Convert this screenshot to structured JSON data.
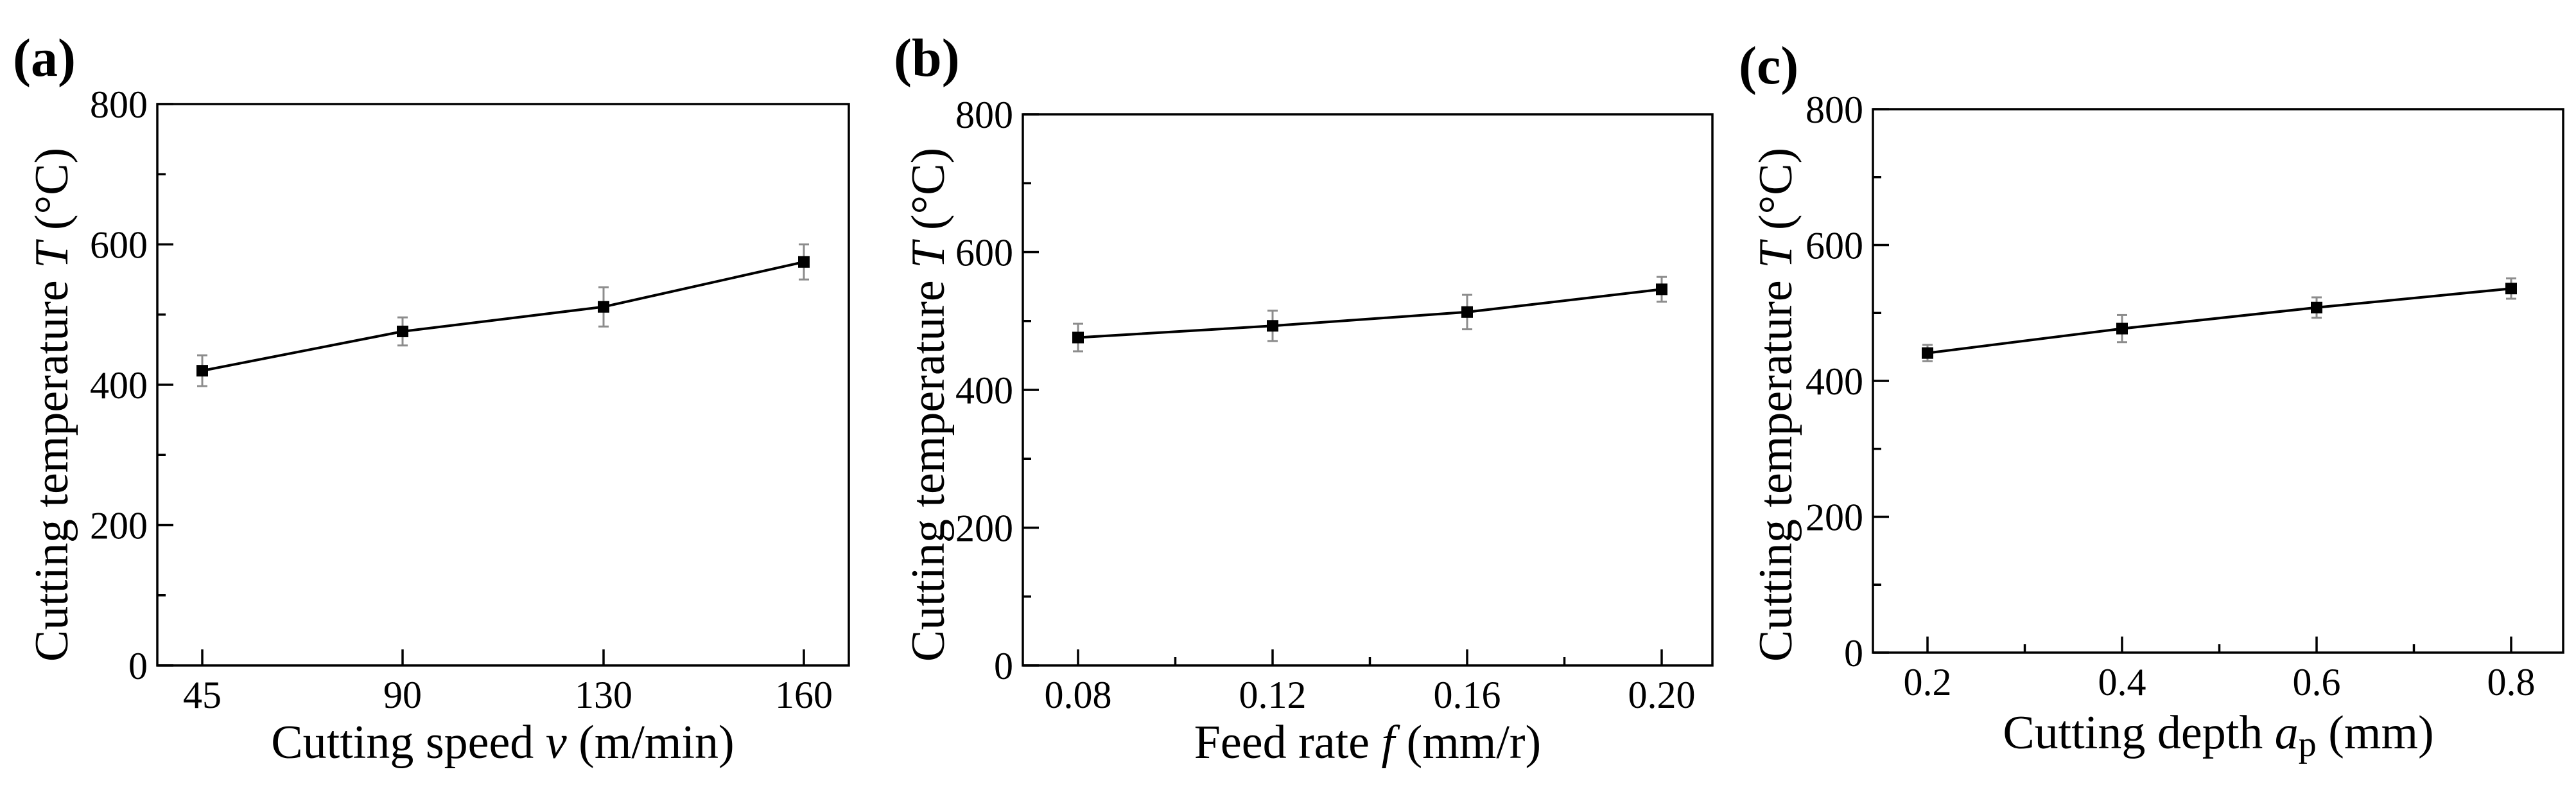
{
  "chart_data": [
    {
      "type": "line",
      "panel_label": "(a)",
      "xlabel_main": "Cutting speed ",
      "xlabel_var": "v",
      "xlabel_unit": " (m/min)",
      "ylabel_main": "Cutting temperature ",
      "ylabel_var": "T",
      "ylabel_unit": " (°C)",
      "categories": [
        "45",
        "90",
        "130",
        "160"
      ],
      "values": [
        420,
        476,
        511,
        575
      ],
      "errors": [
        22,
        20,
        28,
        25
      ],
      "yticks": [
        "0",
        "200",
        "400",
        "600",
        "800"
      ],
      "ylim": [
        0,
        800
      ],
      "grid": false
    },
    {
      "type": "line",
      "panel_label": "(b)",
      "xlabel_main": "Feed rate ",
      "xlabel_var": "f",
      "xlabel_unit": " (mm/r)",
      "ylabel_main": "Cutting temperature ",
      "ylabel_var": "T",
      "ylabel_unit": " (°C)",
      "categories": [
        "0.08",
        "0.12",
        "0.16",
        "0.20"
      ],
      "values": [
        476,
        493,
        513,
        546
      ],
      "errors": [
        20,
        22,
        25,
        18
      ],
      "yticks": [
        "0",
        "200",
        "400",
        "600",
        "800"
      ],
      "ylim": [
        0,
        800
      ],
      "grid": false
    },
    {
      "type": "line",
      "panel_label": "(c)",
      "xlabel_main": "Cutting depth ",
      "xlabel_var": "a",
      "xlabel_sub": "p",
      "xlabel_unit": " (mm)",
      "ylabel_main": "Cutting temperature ",
      "ylabel_var": "T",
      "ylabel_unit": " (°C)",
      "categories": [
        "0.2",
        "0.4",
        "0.6",
        "0.8"
      ],
      "values": [
        441,
        477,
        508,
        536
      ],
      "errors": [
        12,
        20,
        15,
        15
      ],
      "yticks": [
        "0",
        "200",
        "400",
        "600",
        "800"
      ],
      "ylim": [
        0,
        800
      ],
      "grid": false
    }
  ]
}
